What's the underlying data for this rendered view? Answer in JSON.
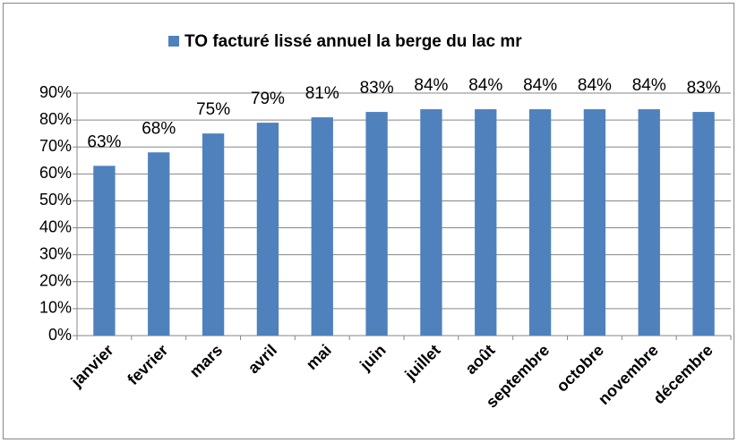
{
  "chart_data": {
    "type": "bar",
    "categories": [
      "janvier",
      "fevrier",
      "mars",
      "avril",
      "mai",
      "juin",
      "juillet",
      "août",
      "septembre",
      "octobre",
      "novembre",
      "décembre"
    ],
    "series": [
      {
        "name": "TO facturé lissé annuel la berge du lac mr",
        "color": "#4f81bd",
        "values": [
          63,
          68,
          75,
          79,
          81,
          83,
          84,
          84,
          84,
          84,
          84,
          83
        ],
        "value_labels": [
          "63%",
          "68%",
          "75%",
          "79%",
          "81%",
          "83%",
          "84%",
          "84%",
          "84%",
          "84%",
          "84%",
          "83%"
        ]
      }
    ],
    "ylim": [
      0,
      90
    ],
    "yticks": [
      {
        "value": 0,
        "label": "0%"
      },
      {
        "value": 10,
        "label": "10%"
      },
      {
        "value": 20,
        "label": "20%"
      },
      {
        "value": 30,
        "label": "30%"
      },
      {
        "value": 40,
        "label": "40%"
      },
      {
        "value": 50,
        "label": "50%"
      },
      {
        "value": 60,
        "label": "60%"
      },
      {
        "value": 70,
        "label": "70%"
      },
      {
        "value": 80,
        "label": "80%"
      },
      {
        "value": 90,
        "label": "90%"
      }
    ],
    "grid": true,
    "legend": "top"
  }
}
